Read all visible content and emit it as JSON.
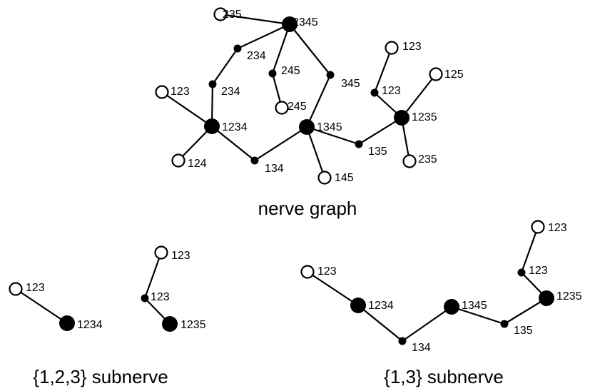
{
  "colors": {
    "ink": "#000000",
    "paper": "#ffffff"
  },
  "graphs": [
    {
      "id": "nerve",
      "caption": "nerve graph",
      "nodes": [
        {
          "id": "n2345",
          "label": "2345",
          "type": "big"
        },
        {
          "id": "n235a",
          "label": "235",
          "type": "open"
        },
        {
          "id": "n234a",
          "label": "234",
          "type": "small"
        },
        {
          "id": "n234b",
          "label": "234",
          "type": "small"
        },
        {
          "id": "n245a",
          "label": "245",
          "type": "small"
        },
        {
          "id": "n245b",
          "label": "245",
          "type": "open"
        },
        {
          "id": "n345",
          "label": "345",
          "type": "small"
        },
        {
          "id": "n123o",
          "label": "123",
          "type": "open"
        },
        {
          "id": "n1234",
          "label": "1234",
          "type": "big"
        },
        {
          "id": "n124",
          "label": "124",
          "type": "open"
        },
        {
          "id": "n134",
          "label": "134",
          "type": "small"
        },
        {
          "id": "n1345",
          "label": "1345",
          "type": "big"
        },
        {
          "id": "n145",
          "label": "145",
          "type": "open"
        },
        {
          "id": "n135",
          "label": "135",
          "type": "small"
        },
        {
          "id": "n1235",
          "label": "1235",
          "type": "big"
        },
        {
          "id": "n123s",
          "label": "123",
          "type": "small"
        },
        {
          "id": "n123t",
          "label": "123",
          "type": "open"
        },
        {
          "id": "n125",
          "label": "125",
          "type": "open"
        },
        {
          "id": "n235b",
          "label": "235",
          "type": "open"
        }
      ],
      "edges": [
        [
          "n2345",
          "n235a"
        ],
        [
          "n2345",
          "n234a"
        ],
        [
          "n234a",
          "n234b"
        ],
        [
          "n234b",
          "n1234"
        ],
        [
          "n2345",
          "n245a"
        ],
        [
          "n245a",
          "n245b"
        ],
        [
          "n2345",
          "n345"
        ],
        [
          "n345",
          "n1345"
        ],
        [
          "n123o",
          "n1234"
        ],
        [
          "n124",
          "n1234"
        ],
        [
          "n1234",
          "n134"
        ],
        [
          "n134",
          "n1345"
        ],
        [
          "n1345",
          "n145"
        ],
        [
          "n1345",
          "n135"
        ],
        [
          "n135",
          "n1235"
        ],
        [
          "n1235",
          "n123s"
        ],
        [
          "n123s",
          "n123t"
        ],
        [
          "n1235",
          "n125"
        ],
        [
          "n1235",
          "n235b"
        ]
      ]
    },
    {
      "id": "sub123",
      "caption": "{1,2,3} subnerve",
      "nodes": [
        {
          "id": "s123a",
          "label": "123",
          "type": "open"
        },
        {
          "id": "s1234",
          "label": "1234",
          "type": "big"
        },
        {
          "id": "s123b",
          "label": "123",
          "type": "open"
        },
        {
          "id": "s123c",
          "label": "123",
          "type": "small"
        },
        {
          "id": "s1235",
          "label": "1235",
          "type": "big"
        }
      ],
      "edges": [
        [
          "s123a",
          "s1234"
        ],
        [
          "s123b",
          "s123c"
        ],
        [
          "s123c",
          "s1235"
        ]
      ]
    },
    {
      "id": "sub13",
      "caption": "{1,3} subnerve",
      "nodes": [
        {
          "id": "t123a",
          "label": "123",
          "type": "open"
        },
        {
          "id": "t1234",
          "label": "1234",
          "type": "big"
        },
        {
          "id": "t134",
          "label": "134",
          "type": "small"
        },
        {
          "id": "t1345",
          "label": "1345",
          "type": "big"
        },
        {
          "id": "t135",
          "label": "135",
          "type": "small"
        },
        {
          "id": "t1235",
          "label": "1235",
          "type": "big"
        },
        {
          "id": "t123b",
          "label": "123",
          "type": "small"
        },
        {
          "id": "t123c",
          "label": "123",
          "type": "open"
        }
      ],
      "edges": [
        [
          "t123a",
          "t1234"
        ],
        [
          "t1234",
          "t134"
        ],
        [
          "t134",
          "t1345"
        ],
        [
          "t1345",
          "t135"
        ],
        [
          "t135",
          "t1235"
        ],
        [
          "t1235",
          "t123b"
        ],
        [
          "t123b",
          "t123c"
        ]
      ]
    }
  ]
}
